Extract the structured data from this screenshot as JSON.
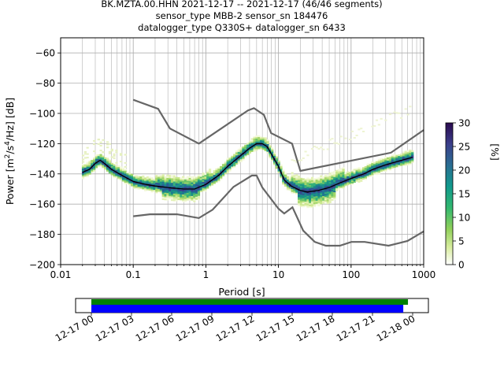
{
  "header": {
    "title_line1": "BK.MZTA.00.HHN   2021-12-17 -- 2021-12-17  (46/46 segments)",
    "title_line2": "sensor_type MBB-2 sensor_sn 184476",
    "title_line3": "datalogger_type Q330S+ datalogger_sn 6433"
  },
  "chart_data": [
    {
      "type": "heatmap",
      "subtype": "probabilistic-power-spectral-density",
      "xlabel": "Period [s]",
      "ylabel": "Power [m²/s⁴/Hz] [dB]",
      "xscale": "log",
      "xlim": [
        0.01,
        1000
      ],
      "ylim": [
        -200,
        -50
      ],
      "x_ticks": [
        {
          "value": 0.01,
          "label": "0.01"
        },
        {
          "value": 0.1,
          "label": "0.1"
        },
        {
          "value": 1,
          "label": "1"
        },
        {
          "value": 10,
          "label": "10"
        },
        {
          "value": 100,
          "label": "100"
        },
        {
          "value": 1000,
          "label": "1000"
        }
      ],
      "y_ticks": [
        {
          "value": -60,
          "label": "−60"
        },
        {
          "value": -80,
          "label": "−80"
        },
        {
          "value": -100,
          "label": "−100"
        },
        {
          "value": -120,
          "label": "−120"
        },
        {
          "value": -140,
          "label": "−140"
        },
        {
          "value": -160,
          "label": "−160"
        },
        {
          "value": -180,
          "label": "−180"
        },
        {
          "value": -200,
          "label": "−200"
        }
      ],
      "grid": true,
      "colorbar": {
        "label": "[%]",
        "range": [
          0,
          30
        ],
        "ticks": [
          "0",
          "5",
          "10",
          "15",
          "20",
          "25",
          "30"
        ]
      },
      "mean_curve": [
        {
          "x": 0.02,
          "y": -139
        },
        {
          "x": 0.025,
          "y": -137
        },
        {
          "x": 0.03,
          "y": -133
        },
        {
          "x": 0.035,
          "y": -131
        },
        {
          "x": 0.04,
          "y": -133
        },
        {
          "x": 0.05,
          "y": -137
        },
        {
          "x": 0.07,
          "y": -141
        },
        {
          "x": 0.1,
          "y": -145
        },
        {
          "x": 0.15,
          "y": -147
        },
        {
          "x": 0.2,
          "y": -148
        },
        {
          "x": 0.3,
          "y": -149
        },
        {
          "x": 0.5,
          "y": -150
        },
        {
          "x": 0.7,
          "y": -150
        },
        {
          "x": 1,
          "y": -147
        },
        {
          "x": 1.5,
          "y": -141
        },
        {
          "x": 2,
          "y": -135
        },
        {
          "x": 3,
          "y": -128
        },
        {
          "x": 4,
          "y": -123
        },
        {
          "x": 5,
          "y": -120
        },
        {
          "x": 6,
          "y": -120
        },
        {
          "x": 7,
          "y": -122
        },
        {
          "x": 8,
          "y": -127
        },
        {
          "x": 10,
          "y": -135
        },
        {
          "x": 12,
          "y": -144
        },
        {
          "x": 15,
          "y": -148
        },
        {
          "x": 20,
          "y": -151
        },
        {
          "x": 25,
          "y": -152
        },
        {
          "x": 35,
          "y": -151
        },
        {
          "x": 50,
          "y": -149
        },
        {
          "x": 70,
          "y": -146
        },
        {
          "x": 100,
          "y": -143
        },
        {
          "x": 150,
          "y": -140
        },
        {
          "x": 200,
          "y": -137
        },
        {
          "x": 300,
          "y": -134
        },
        {
          "x": 500,
          "y": -131
        },
        {
          "x": 700,
          "y": -129
        }
      ],
      "nhnm": [
        {
          "x": 0.1,
          "y": -91
        },
        {
          "x": 0.22,
          "y": -97
        },
        {
          "x": 0.32,
          "y": -110
        },
        {
          "x": 0.8,
          "y": -120
        },
        {
          "x": 3.8,
          "y": -98
        },
        {
          "x": 4.6,
          "y": -96.5
        },
        {
          "x": 6.3,
          "y": -101
        },
        {
          "x": 7.9,
          "y": -113
        },
        {
          "x": 15.4,
          "y": -120
        },
        {
          "x": 20,
          "y": -138
        },
        {
          "x": 354,
          "y": -126
        },
        {
          "x": 1000,
          "y": -111
        }
      ],
      "nlnm": [
        {
          "x": 0.1,
          "y": -168
        },
        {
          "x": 0.17,
          "y": -166.7
        },
        {
          "x": 0.4,
          "y": -166.7
        },
        {
          "x": 0.8,
          "y": -169.2
        },
        {
          "x": 1.24,
          "y": -163.7
        },
        {
          "x": 2.4,
          "y": -148.6
        },
        {
          "x": 4.3,
          "y": -141.1
        },
        {
          "x": 5,
          "y": -141.1
        },
        {
          "x": 6,
          "y": -149
        },
        {
          "x": 10,
          "y": -163
        },
        {
          "x": 12,
          "y": -166.2
        },
        {
          "x": 15.6,
          "y": -162.1
        },
        {
          "x": 21.9,
          "y": -177.5
        },
        {
          "x": 31.6,
          "y": -185
        },
        {
          "x": 45,
          "y": -187.5
        },
        {
          "x": 70,
          "y": -187.5
        },
        {
          "x": 101,
          "y": -185
        },
        {
          "x": 154,
          "y": -185
        },
        {
          "x": 328,
          "y": -187.5
        },
        {
          "x": 600,
          "y": -184.4
        },
        {
          "x": 1000,
          "y": -178
        }
      ]
    },
    {
      "type": "timeline",
      "subtype": "data-coverage",
      "ticks": [
        "12-17 00",
        "12-17 03",
        "12-17 06",
        "12-17 09",
        "12-17 12",
        "12-17 15",
        "12-17 18",
        "12-17 21",
        "12-18 00"
      ],
      "coverage_hours_green": [
        0,
        23.65
      ],
      "coverage_hours_blue": [
        0,
        23.3
      ],
      "colors": {
        "green": "#008000",
        "blue": "#0000ff"
      }
    }
  ]
}
